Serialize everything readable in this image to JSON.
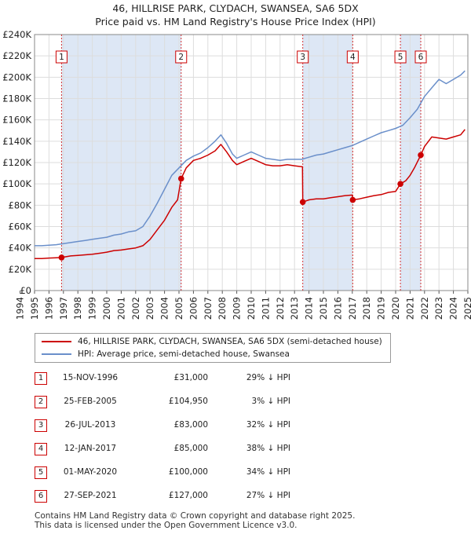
{
  "title_line1": "46, HILLRISE PARK, CLYDACH, SWANSEA, SA6 5DX",
  "title_line2": "Price paid vs. HM Land Registry's House Price Index (HPI)",
  "colors": {
    "property": "#cc0000",
    "hpi": "#6a8fca",
    "shade": "#dde7f5",
    "grid": "#dddddd",
    "marker_border": "#cc0000"
  },
  "chart_data": {
    "type": "line",
    "xlim": [
      1995,
      2025
    ],
    "ylim": [
      0,
      240000
    ],
    "x_ticks": [
      "1994",
      "1995",
      "1996",
      "1997",
      "1998",
      "1999",
      "2000",
      "2001",
      "2002",
      "2003",
      "2004",
      "2005",
      "2006",
      "2007",
      "2008",
      "2009",
      "2010",
      "2011",
      "2012",
      "2013",
      "2014",
      "2015",
      "2016",
      "2017",
      "2018",
      "2019",
      "2020",
      "2021",
      "2022",
      "2023",
      "2024",
      "2025"
    ],
    "y_ticks": [
      "£0",
      "£20K",
      "£40K",
      "£60K",
      "£80K",
      "£100K",
      "£120K",
      "£140K",
      "£160K",
      "£180K",
      "£200K",
      "£220K",
      "£240K"
    ],
    "grid": true,
    "series": [
      {
        "name": "46, HILLRISE PARK, CLYDACH, SWANSEA, SA6 5DX (semi-detached house)",
        "color": "#cc0000",
        "points": [
          [
            1995.0,
            30000
          ],
          [
            1995.5,
            30000
          ],
          [
            1996.0,
            30500
          ],
          [
            1996.5,
            30800
          ],
          [
            1996.87,
            31000
          ],
          [
            1997.5,
            32500
          ],
          [
            1998.0,
            33000
          ],
          [
            1998.5,
            33500
          ],
          [
            1999.0,
            34000
          ],
          [
            1999.5,
            35000
          ],
          [
            2000.0,
            36000
          ],
          [
            2000.5,
            37500
          ],
          [
            2001.0,
            38000
          ],
          [
            2001.5,
            39000
          ],
          [
            2002.0,
            40000
          ],
          [
            2002.5,
            42000
          ],
          [
            2003.0,
            48000
          ],
          [
            2003.5,
            57000
          ],
          [
            2004.0,
            66000
          ],
          [
            2004.5,
            78000
          ],
          [
            2004.9,
            85000
          ],
          [
            2005.15,
            104950
          ],
          [
            2005.5,
            115000
          ],
          [
            2006.0,
            122000
          ],
          [
            2006.5,
            124000
          ],
          [
            2007.0,
            127000
          ],
          [
            2007.5,
            131000
          ],
          [
            2007.9,
            137000
          ],
          [
            2008.3,
            130000
          ],
          [
            2008.7,
            122000
          ],
          [
            2009.0,
            118000
          ],
          [
            2009.5,
            121000
          ],
          [
            2010.0,
            124000
          ],
          [
            2010.5,
            121000
          ],
          [
            2011.0,
            118000
          ],
          [
            2011.5,
            117000
          ],
          [
            2012.0,
            117000
          ],
          [
            2012.5,
            118000
          ],
          [
            2013.0,
            117000
          ],
          [
            2013.55,
            116000
          ],
          [
            2013.57,
            83000
          ],
          [
            2014.0,
            85000
          ],
          [
            2014.5,
            86000
          ],
          [
            2015.0,
            86000
          ],
          [
            2015.5,
            87000
          ],
          [
            2016.0,
            88000
          ],
          [
            2016.5,
            89000
          ],
          [
            2017.0,
            89500
          ],
          [
            2017.03,
            85000
          ],
          [
            2017.5,
            86000
          ],
          [
            2018.0,
            87500
          ],
          [
            2018.5,
            89000
          ],
          [
            2019.0,
            90000
          ],
          [
            2019.5,
            92000
          ],
          [
            2020.0,
            93000
          ],
          [
            2020.33,
            100000
          ],
          [
            2020.7,
            103000
          ],
          [
            2021.0,
            108000
          ],
          [
            2021.3,
            115000
          ],
          [
            2021.74,
            127000
          ],
          [
            2022.0,
            135000
          ],
          [
            2022.5,
            144000
          ],
          [
            2023.0,
            143000
          ],
          [
            2023.5,
            142000
          ],
          [
            2024.0,
            144000
          ],
          [
            2024.5,
            146000
          ],
          [
            2024.8,
            151000
          ]
        ]
      },
      {
        "name": "HPI: Average price, semi-detached house, Swansea",
        "color": "#6a8fca",
        "points": [
          [
            1995.0,
            42000
          ],
          [
            1995.5,
            42000
          ],
          [
            1996.0,
            42500
          ],
          [
            1996.5,
            43000
          ],
          [
            1997.0,
            44000
          ],
          [
            1997.5,
            45000
          ],
          [
            1998.0,
            46000
          ],
          [
            1998.5,
            47000
          ],
          [
            1999.0,
            48000
          ],
          [
            1999.5,
            49000
          ],
          [
            2000.0,
            50000
          ],
          [
            2000.5,
            52000
          ],
          [
            2001.0,
            53000
          ],
          [
            2001.5,
            55000
          ],
          [
            2002.0,
            56000
          ],
          [
            2002.5,
            60000
          ],
          [
            2003.0,
            70000
          ],
          [
            2003.5,
            82000
          ],
          [
            2004.0,
            95000
          ],
          [
            2004.5,
            108000
          ],
          [
            2005.0,
            115000
          ],
          [
            2005.5,
            122000
          ],
          [
            2006.0,
            126000
          ],
          [
            2006.5,
            129000
          ],
          [
            2007.0,
            134000
          ],
          [
            2007.5,
            140000
          ],
          [
            2007.9,
            146000
          ],
          [
            2008.3,
            138000
          ],
          [
            2008.7,
            128000
          ],
          [
            2009.0,
            124000
          ],
          [
            2009.5,
            127000
          ],
          [
            2010.0,
            130000
          ],
          [
            2010.5,
            127000
          ],
          [
            2011.0,
            124000
          ],
          [
            2011.5,
            123000
          ],
          [
            2012.0,
            122000
          ],
          [
            2012.5,
            123000
          ],
          [
            2013.0,
            123000
          ],
          [
            2013.5,
            123000
          ],
          [
            2014.0,
            125000
          ],
          [
            2014.5,
            127000
          ],
          [
            2015.0,
            128000
          ],
          [
            2015.5,
            130000
          ],
          [
            2016.0,
            132000
          ],
          [
            2016.5,
            134000
          ],
          [
            2017.0,
            136000
          ],
          [
            2017.5,
            139000
          ],
          [
            2018.0,
            142000
          ],
          [
            2018.5,
            145000
          ],
          [
            2019.0,
            148000
          ],
          [
            2019.5,
            150000
          ],
          [
            2020.0,
            152000
          ],
          [
            2020.5,
            155000
          ],
          [
            2021.0,
            162000
          ],
          [
            2021.5,
            170000
          ],
          [
            2022.0,
            182000
          ],
          [
            2022.5,
            190000
          ],
          [
            2023.0,
            198000
          ],
          [
            2023.5,
            194000
          ],
          [
            2024.0,
            198000
          ],
          [
            2024.5,
            202000
          ],
          [
            2024.8,
            206000
          ]
        ]
      }
    ],
    "transactions": [
      {
        "label": "1",
        "x": 1996.87,
        "y": 31000
      },
      {
        "label": "2",
        "x": 2005.15,
        "y": 104950
      },
      {
        "label": "3",
        "x": 2013.57,
        "y": 83000
      },
      {
        "label": "4",
        "x": 2017.03,
        "y": 85000
      },
      {
        "label": "5",
        "x": 2020.33,
        "y": 100000
      },
      {
        "label": "6",
        "x": 2021.74,
        "y": 127000
      }
    ]
  },
  "legend": {
    "property": "46, HILLRISE PARK, CLYDACH, SWANSEA, SA6 5DX (semi-detached house)",
    "hpi": "HPI: Average price, semi-detached house, Swansea"
  },
  "sales": [
    {
      "num": "1",
      "date": "15-NOV-1996",
      "price": "£31,000",
      "hpi": "29% ↓ HPI"
    },
    {
      "num": "2",
      "date": "25-FEB-2005",
      "price": "£104,950",
      "hpi": "3% ↓ HPI"
    },
    {
      "num": "3",
      "date": "26-JUL-2013",
      "price": "£83,000",
      "hpi": "32% ↓ HPI"
    },
    {
      "num": "4",
      "date": "12-JAN-2017",
      "price": "£85,000",
      "hpi": "38% ↓ HPI"
    },
    {
      "num": "5",
      "date": "01-MAY-2020",
      "price": "£100,000",
      "hpi": "34% ↓ HPI"
    },
    {
      "num": "6",
      "date": "27-SEP-2021",
      "price": "£127,000",
      "hpi": "27% ↓ HPI"
    }
  ],
  "footer_line1": "Contains HM Land Registry data © Crown copyright and database right 2025.",
  "footer_line2": "This data is licensed under the Open Government Licence v3.0."
}
